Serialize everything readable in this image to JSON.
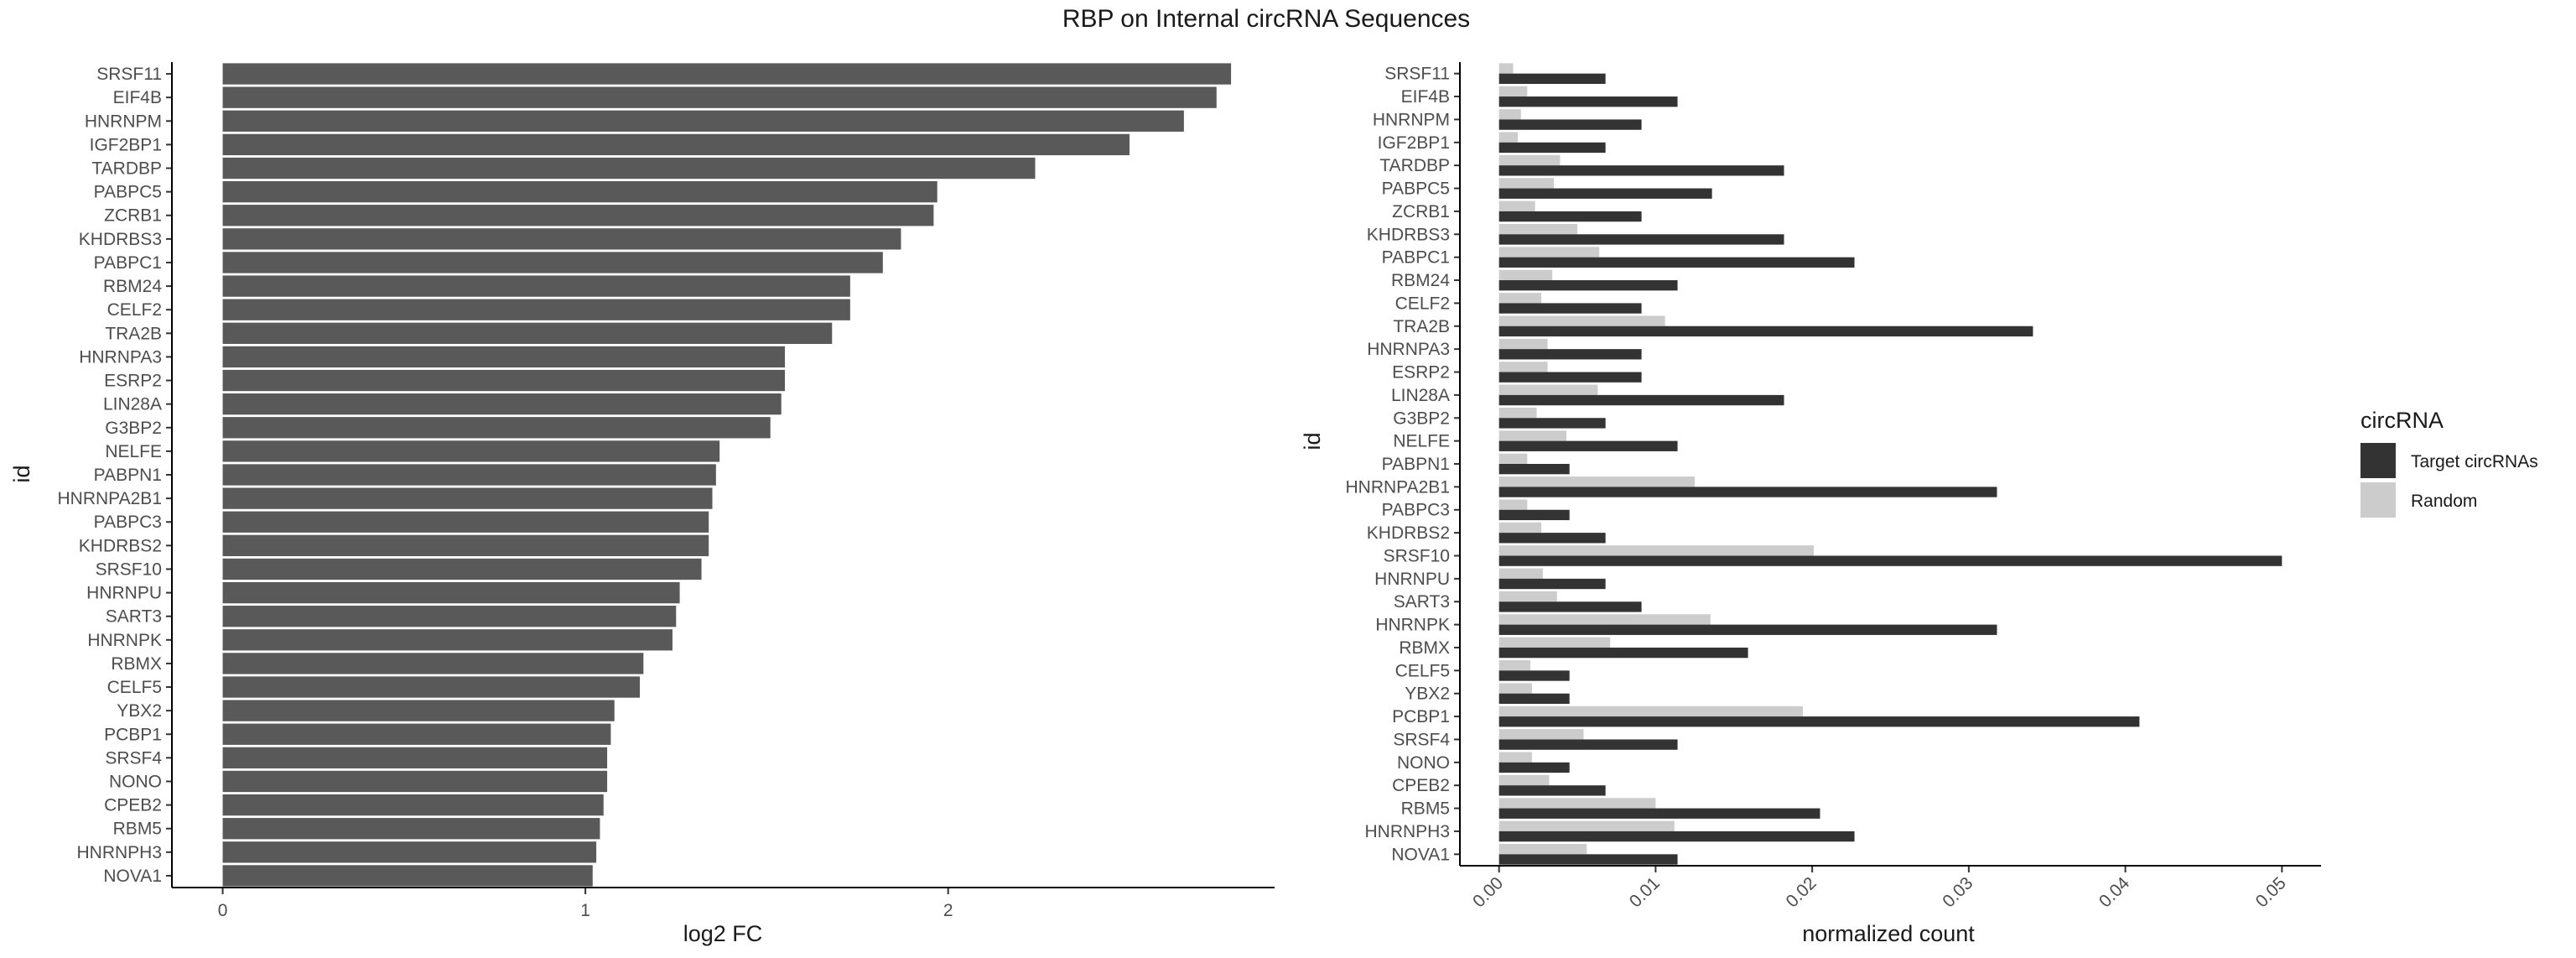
{
  "title": "RBP on Internal circRNA Sequences",
  "colors": {
    "bar_single": "#595959",
    "target": "#333333",
    "random": "#cccccc",
    "axis": "#000000"
  },
  "chart_data": [
    {
      "type": "bar",
      "orientation": "horizontal",
      "xlabel": "log2 FC",
      "ylabel": "id",
      "xlim": [
        -0.14,
        2.9
      ],
      "xticks": [
        0,
        1,
        2
      ],
      "categories": [
        "SRSF11",
        "EIF4B",
        "HNRNPM",
        "IGF2BP1",
        "TARDBP",
        "PABPC5",
        "ZCRB1",
        "KHDRBS3",
        "PABPC1",
        "RBM24",
        "CELF2",
        "TRA2B",
        "HNRNPA3",
        "ESRP2",
        "LIN28A",
        "G3BP2",
        "NELFE",
        "PABPN1",
        "HNRNPA2B1",
        "PABPC3",
        "KHDRBS2",
        "SRSF10",
        "HNRNPU",
        "SART3",
        "HNRNPK",
        "RBMX",
        "CELF5",
        "YBX2",
        "PCBP1",
        "SRSF4",
        "NONO",
        "CPEB2",
        "RBM5",
        "HNRNPH3",
        "NOVA1"
      ],
      "values": [
        2.78,
        2.74,
        2.65,
        2.5,
        2.24,
        1.97,
        1.96,
        1.87,
        1.82,
        1.73,
        1.73,
        1.68,
        1.55,
        1.55,
        1.54,
        1.51,
        1.37,
        1.36,
        1.35,
        1.34,
        1.34,
        1.32,
        1.26,
        1.25,
        1.24,
        1.16,
        1.15,
        1.08,
        1.07,
        1.06,
        1.06,
        1.05,
        1.04,
        1.03,
        1.02
      ]
    },
    {
      "type": "bar",
      "orientation": "horizontal",
      "grouped": true,
      "xlabel": "normalized count",
      "ylabel": "id",
      "xlim": [
        -0.0025,
        0.0525
      ],
      "xticks": [
        0.0,
        0.01,
        0.02,
        0.03,
        0.04,
        0.05
      ],
      "xtick_labels": [
        "0.00",
        "0.01",
        "0.02",
        "0.03",
        "0.04",
        "0.05"
      ],
      "legend": {
        "title": "circRNA",
        "position": "right"
      },
      "categories": [
        "SRSF11",
        "EIF4B",
        "HNRNPM",
        "IGF2BP1",
        "TARDBP",
        "PABPC5",
        "ZCRB1",
        "KHDRBS3",
        "PABPC1",
        "RBM24",
        "CELF2",
        "TRA2B",
        "HNRNPA3",
        "ESRP2",
        "LIN28A",
        "G3BP2",
        "NELFE",
        "PABPN1",
        "HNRNPA2B1",
        "PABPC3",
        "KHDRBS2",
        "SRSF10",
        "HNRNPU",
        "SART3",
        "HNRNPK",
        "RBMX",
        "CELF5",
        "YBX2",
        "PCBP1",
        "SRSF4",
        "NONO",
        "CPEB2",
        "RBM5",
        "HNRNPH3",
        "NOVA1"
      ],
      "series": [
        {
          "name": "Target circRNAs",
          "values": [
            0.0068,
            0.0114,
            0.0091,
            0.0068,
            0.0182,
            0.0136,
            0.0091,
            0.0182,
            0.0227,
            0.0114,
            0.0091,
            0.0341,
            0.0091,
            0.0091,
            0.0182,
            0.0068,
            0.0114,
            0.0045,
            0.0318,
            0.0045,
            0.0068,
            0.05,
            0.0068,
            0.0091,
            0.0318,
            0.0159,
            0.0045,
            0.0045,
            0.0409,
            0.0114,
            0.0045,
            0.0068,
            0.0205,
            0.0227,
            0.0114
          ]
        },
        {
          "name": "Random",
          "values": [
            0.0009,
            0.0018,
            0.0014,
            0.0012,
            0.0039,
            0.0035,
            0.0023,
            0.005,
            0.0064,
            0.0034,
            0.0027,
            0.0106,
            0.0031,
            0.0031,
            0.0063,
            0.0024,
            0.0043,
            0.0018,
            0.0125,
            0.0018,
            0.0027,
            0.0201,
            0.0028,
            0.0037,
            0.0135,
            0.0071,
            0.002,
            0.0021,
            0.0194,
            0.0054,
            0.0021,
            0.0032,
            0.01,
            0.0112,
            0.0056
          ]
        }
      ]
    }
  ]
}
